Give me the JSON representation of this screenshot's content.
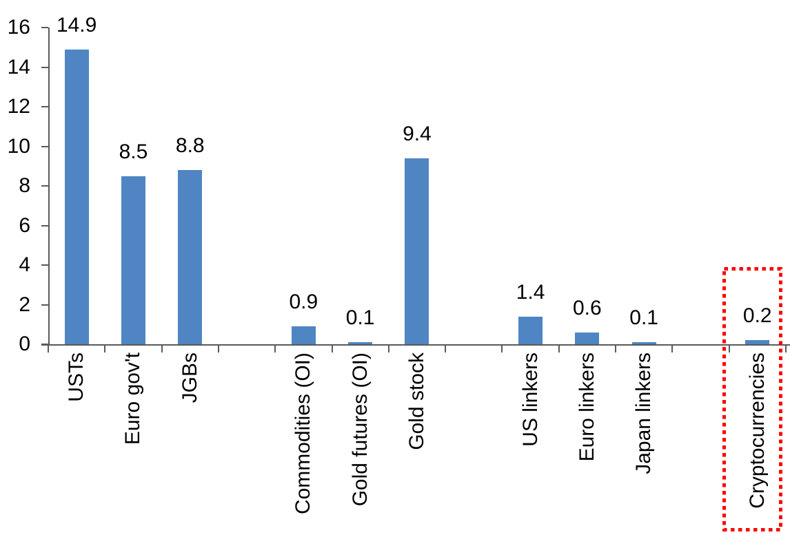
{
  "chart_data": {
    "type": "bar",
    "title": "",
    "xlabel": "",
    "ylabel": "",
    "categories": [
      "USTs",
      "Euro gov't",
      "JGBs",
      "Commodities (OI)",
      "Gold futures (OI)",
      "Gold stock",
      "US linkers",
      "Euro linkers",
      "Japan linkers",
      "Cryptocurrencies"
    ],
    "values": [
      14.9,
      8.5,
      8.8,
      0.9,
      0.1,
      9.4,
      1.4,
      0.6,
      0.1,
      0.2
    ],
    "value_labels": [
      "14.9",
      "8.5",
      "8.8",
      "0.9",
      "0.1",
      "9.4",
      "1.4",
      "0.6",
      "0.1",
      "0.2"
    ],
    "slot_indices": [
      0,
      1,
      2,
      4,
      5,
      6,
      8,
      9,
      10,
      12
    ],
    "n_slots": 13,
    "ylim": [
      0,
      16
    ],
    "ytick_step": 2,
    "ytick_labels": [
      "0",
      "2",
      "4",
      "6",
      "8",
      "10",
      "12",
      "14",
      "16"
    ],
    "grid": "off",
    "legend": "none",
    "bar_color": "#4e85c2",
    "axis_color": "#595959",
    "text_color": "#000000",
    "highlight": {
      "category": "Cryptocurrencies",
      "style": "red-dotted-box",
      "color": "#ff0000"
    }
  }
}
